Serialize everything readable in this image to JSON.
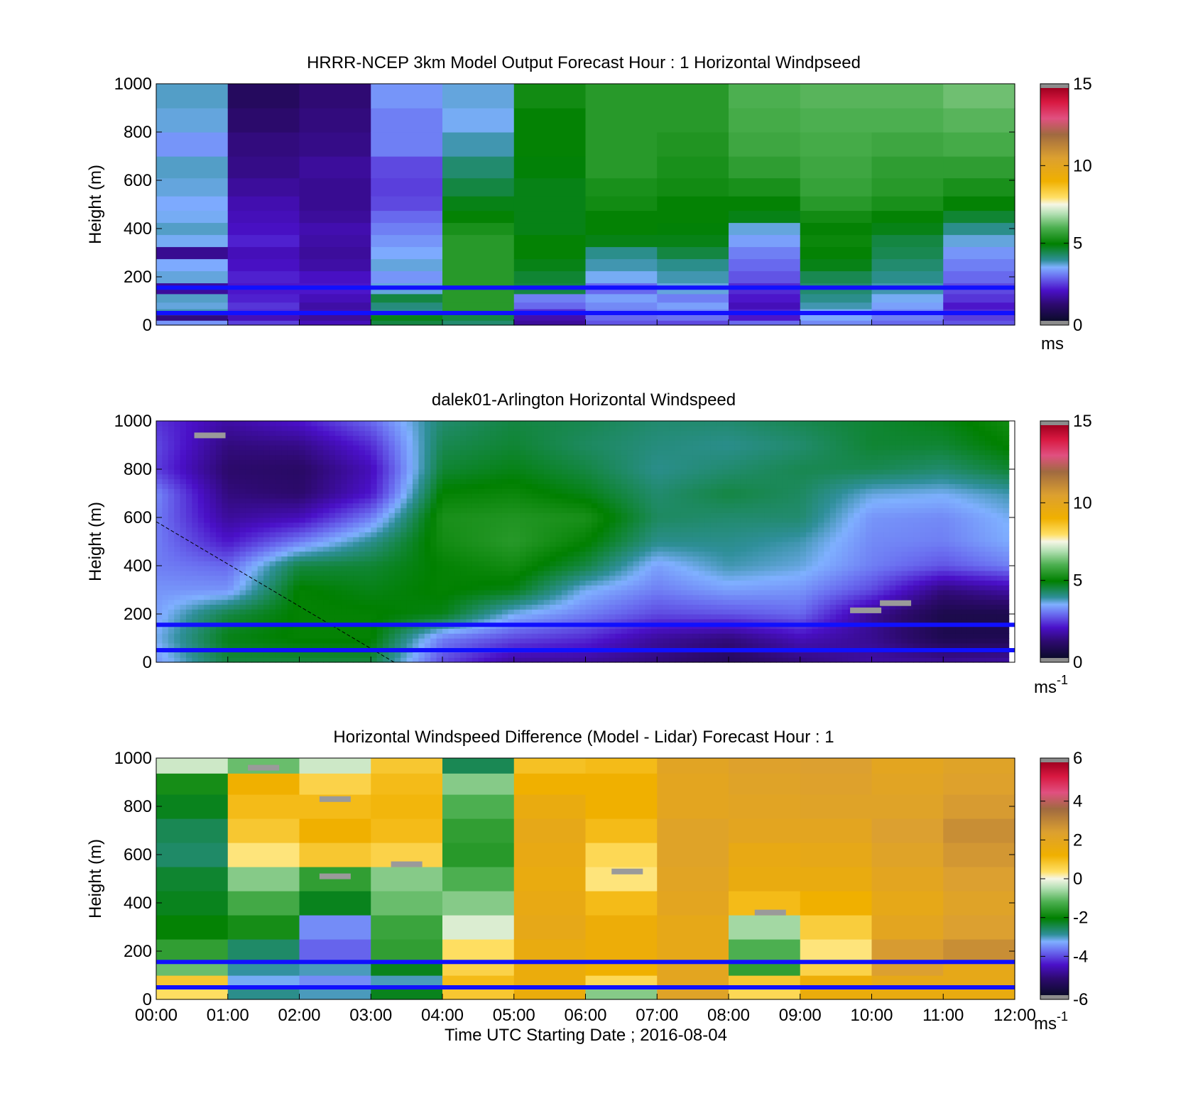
{
  "figure": {
    "xlabel": "Time UTC  Starting Date ; 2016-08-04",
    "x_ticks": [
      "00:00",
      "01:00",
      "02:00",
      "03:00",
      "04:00",
      "05:00",
      "06:00",
      "07:00",
      "08:00",
      "09:00",
      "10:00",
      "11:00",
      "12:00"
    ]
  },
  "chart_data": [
    {
      "type": "heatmap",
      "title": "HRRR-NCEP 3km Model Output   Forecast Hour : 1 Horizontal Windpseed",
      "ylabel": "Height (m)",
      "xlim": [
        "00:00",
        "12:00"
      ],
      "ylim": [
        0,
        1000
      ],
      "y_ticks": [
        "0",
        "200",
        "400",
        "600",
        "800",
        "1000"
      ],
      "colorbar": {
        "min": 0,
        "max": 15,
        "ticks": [
          "0",
          "5",
          "10",
          "15"
        ],
        "unit": "ms",
        "unit_sup": ""
      },
      "reference_lines_m": [
        50,
        155
      ],
      "x_centers": [
        "00:30",
        "01:30",
        "02:30",
        "03:30",
        "04:30",
        "05:30",
        "06:30",
        "07:30",
        "08:30",
        "09:30",
        "10:30",
        "11:30"
      ],
      "heights_m": [
        10,
        30,
        55,
        80,
        110,
        150,
        200,
        250,
        300,
        350,
        400,
        450,
        500,
        570,
        650,
        750,
        850,
        950
      ],
      "values": [
        [
          3.2,
          1.2,
          3.8,
          3.6,
          3.7,
          1.5,
          3.6,
          3.4,
          1.4,
          3.5,
          3.7,
          3.5,
          3.4,
          3.6,
          3.7,
          3.2,
          3.6,
          3.7
        ],
        [
          2.4,
          1.8,
          2.2,
          2.3,
          2.1,
          2.0,
          2.1,
          1.9,
          1.8,
          2.1,
          1.9,
          1.8,
          1.7,
          1.5,
          1.3,
          1.2,
          1.0,
          0.8
        ],
        [
          1.8,
          1.5,
          1.7,
          1.6,
          1.8,
          2.0,
          1.9,
          1.6,
          1.5,
          1.6,
          1.7,
          1.5,
          1.4,
          1.4,
          1.5,
          1.3,
          1.2,
          1.1
        ],
        [
          4.5,
          4.8,
          4.0,
          4.1,
          4.5,
          3.6,
          3.2,
          3.6,
          3.4,
          3.2,
          3.0,
          2.8,
          2.5,
          2.4,
          2.5,
          3.0,
          3.0,
          3.2
        ],
        [
          4.2,
          4.5,
          5.5,
          5.5,
          5.5,
          5.5,
          5.5,
          5.5,
          5.5,
          5.5,
          5.3,
          5.0,
          4.8,
          4.5,
          4.2,
          3.8,
          3.5,
          3.6
        ],
        [
          1.5,
          1.7,
          2.2,
          2.8,
          3.0,
          4.5,
          4.6,
          4.8,
          5.0,
          5.0,
          4.8,
          4.8,
          4.8,
          4.8,
          4.9,
          5.0,
          5.0,
          5.2
        ],
        [
          2.6,
          2.8,
          3.0,
          3.1,
          3.3,
          2.8,
          3.5,
          3.8,
          4.0,
          4.8,
          5.0,
          5.0,
          5.2,
          5.3,
          5.5,
          5.5,
          5.5,
          5.5
        ],
        [
          2.5,
          2.9,
          3.1,
          3.3,
          3.0,
          3.6,
          3.8,
          4.0,
          4.5,
          4.8,
          4.9,
          5.0,
          5.0,
          5.2,
          5.3,
          5.4,
          5.5,
          5.5
        ],
        [
          2.8,
          2.0,
          2.1,
          1.8,
          2.0,
          2.2,
          2.6,
          2.8,
          3.0,
          3.3,
          3.6,
          4.8,
          5.0,
          5.3,
          5.6,
          5.8,
          5.9,
          6.0
        ],
        [
          3.1,
          3.4,
          3.5,
          3.8,
          4.0,
          4.2,
          4.4,
          4.8,
          5.0,
          5.1,
          5.0,
          5.2,
          5.5,
          5.7,
          5.8,
          5.9,
          6.0,
          6.1
        ],
        [
          2.8,
          3.0,
          3.1,
          3.3,
          3.5,
          3.8,
          4.0,
          4.2,
          4.4,
          4.5,
          4.8,
          5.0,
          5.3,
          5.5,
          5.6,
          5.8,
          6.0,
          6.1
        ],
        [
          2.6,
          2.4,
          2.2,
          2.0,
          2.3,
          2.5,
          2.8,
          3.0,
          3.2,
          3.6,
          4.0,
          4.6,
          5.0,
          5.3,
          5.6,
          5.9,
          6.1,
          6.3
        ]
      ]
    },
    {
      "type": "heatmap",
      "title": "dalek01-Arlington  Horizontal Windspeed",
      "ylabel": "Height (m)",
      "xlim": [
        "00:00",
        "12:00"
      ],
      "ylim": [
        0,
        1000
      ],
      "y_ticks": [
        "0",
        "200",
        "400",
        "600",
        "800",
        "1000"
      ],
      "colorbar": {
        "min": 0,
        "max": 15,
        "ticks": [
          "0",
          "5",
          "10",
          "15"
        ],
        "unit": "ms",
        "unit_sup": "-1"
      },
      "reference_lines_m": [
        50,
        155
      ],
      "anchor_times": [
        "00:00",
        "01:00",
        "02:00",
        "03:00",
        "04:00",
        "05:00",
        "06:00",
        "07:00",
        "08:00",
        "09:00",
        "10:00",
        "11:00",
        "11:55"
      ],
      "anchor_heights_m": [
        0,
        100,
        200,
        300,
        400,
        500,
        600,
        700,
        800,
        900,
        1000
      ],
      "anchor_values": [
        [
          3.2,
          3.5,
          3.3,
          3.2,
          3.0,
          3.0,
          3.0,
          3.1,
          2.4,
          2.5,
          2.3
        ],
        [
          4.5,
          4.8,
          4.5,
          3.2,
          2.8,
          2.0,
          1.5,
          1.2,
          1.0,
          1.2,
          1.6
        ],
        [
          4.5,
          5.0,
          5.0,
          5.0,
          4.5,
          3.0,
          1.8,
          1.0,
          0.9,
          1.3,
          2.0
        ],
        [
          4.5,
          5.0,
          5.0,
          4.8,
          4.6,
          4.0,
          3.0,
          2.0,
          1.8,
          2.2,
          2.8
        ],
        [
          2.5,
          3.0,
          4.8,
          5.0,
          5.0,
          5.2,
          5.3,
          5.0,
          4.6,
          4.4,
          4.2
        ],
        [
          1.5,
          2.5,
          3.5,
          4.8,
          5.2,
          5.5,
          5.4,
          5.1,
          4.8,
          4.6,
          4.5
        ],
        [
          1.5,
          2.2,
          3.0,
          3.5,
          4.5,
          5.0,
          5.3,
          4.8,
          4.5,
          4.3,
          4.4
        ],
        [
          1.2,
          1.5,
          2.5,
          3.0,
          3.3,
          4.0,
          4.3,
          4.2,
          4.0,
          4.1,
          4.2
        ],
        [
          0.8,
          1.2,
          2.6,
          3.3,
          3.8,
          4.0,
          4.2,
          4.5,
          4.2,
          4.0,
          4.2
        ],
        [
          1.2,
          1.8,
          2.8,
          3.2,
          3.6,
          3.8,
          4.2,
          4.3,
          4.4,
          4.2,
          4.4
        ],
        [
          1.6,
          1.4,
          1.4,
          2.5,
          3.0,
          3.1,
          3.2,
          3.6,
          4.4,
          4.6,
          4.6
        ],
        [
          1.5,
          0.6,
          0.5,
          1.2,
          2.6,
          3.0,
          3.1,
          3.5,
          4.2,
          4.6,
          4.8
        ],
        [
          1.6,
          0.6,
          0.5,
          1.6,
          3.0,
          3.4,
          3.5,
          3.8,
          4.6,
          5.0,
          5.2
        ]
      ],
      "missing_value_patches": [
        {
          "time": "00:45",
          "height_m": 940
        },
        {
          "time": "09:55",
          "height_m": 215
        },
        {
          "time": "10:20",
          "height_m": 245
        }
      ]
    },
    {
      "type": "heatmap",
      "title": "Horizontal Windspeed Difference (Model - Lidar) Forecast Hour : 1",
      "ylabel": "Height (m)",
      "xlim": [
        "00:00",
        "12:00"
      ],
      "ylim": [
        0,
        1000
      ],
      "y_ticks": [
        "0",
        "200",
        "400",
        "600",
        "800",
        "1000"
      ],
      "colorbar": {
        "min": -6,
        "max": 6,
        "ticks": [
          "-6",
          "-4",
          "-2",
          "0",
          "2",
          "4",
          "6"
        ],
        "unit": "ms",
        "unit_sup": "-1"
      },
      "reference_lines_m": [
        50,
        155
      ],
      "x_centers": [
        "00:30",
        "01:30",
        "02:30",
        "03:30",
        "04:30",
        "05:30",
        "06:30",
        "07:30",
        "08:30",
        "09:30",
        "10:30",
        "11:30"
      ],
      "heights_m": [
        25,
        75,
        125,
        200,
        300,
        400,
        500,
        600,
        700,
        800,
        900,
        975
      ],
      "values": [
        [
          0.4,
          0.8,
          -1.0,
          -1.5,
          -2.0,
          -2.2,
          -2.3,
          -2.6,
          -2.5,
          -2.2,
          -1.8,
          -0.3
        ],
        [
          -2.8,
          -3.2,
          -2.9,
          -2.6,
          -1.8,
          -1.3,
          -0.8,
          0.3,
          0.8,
          1.0,
          1.2,
          -1.0
        ],
        [
          -3.0,
          -3.5,
          -3.0,
          -3.8,
          -3.5,
          -2.2,
          -1.5,
          0.8,
          1.2,
          1.0,
          0.6,
          -0.3
        ],
        [
          -2.2,
          -3.0,
          -2.2,
          -1.5,
          -1.4,
          -1.0,
          -0.8,
          0.6,
          1.0,
          1.1,
          1.0,
          0.8
        ],
        [
          0.8,
          1.0,
          0.6,
          0.4,
          -0.2,
          -0.8,
          -1.2,
          -1.6,
          -1.5,
          -1.2,
          -0.8,
          -2.5
        ],
        [
          1.5,
          1.5,
          1.5,
          1.6,
          1.8,
          1.7,
          1.6,
          1.7,
          1.8,
          1.6,
          1.2,
          0.9
        ],
        [
          -0.8,
          0.5,
          1.2,
          1.4,
          1.4,
          1.0,
          0.3,
          0.5,
          1.0,
          1.2,
          1.2,
          1.0
        ],
        [
          2.2,
          2.0,
          2.0,
          1.8,
          1.8,
          2.0,
          2.1,
          2.2,
          2.2,
          2.0,
          2.0,
          2.1
        ],
        [
          0.5,
          0.8,
          -1.5,
          -1.2,
          -0.6,
          1.0,
          1.6,
          1.7,
          2.0,
          2.1,
          2.2,
          2.3
        ],
        [
          1.5,
          1.4,
          0.6,
          0.3,
          0.7,
          1.2,
          1.6,
          1.8,
          2.0,
          2.2,
          2.3,
          2.4
        ],
        [
          1.6,
          1.8,
          2.4,
          2.5,
          2.0,
          1.8,
          2.0,
          2.2,
          2.4,
          2.2,
          2.1,
          2.0
        ],
        [
          1.6,
          1.8,
          1.8,
          2.8,
          2.4,
          2.2,
          2.4,
          2.6,
          2.8,
          2.5,
          2.3,
          2.2
        ]
      ],
      "missing_value_patches": [
        {
          "time": "06:35",
          "height_m": 530
        },
        {
          "time": "08:35",
          "height_m": 360
        },
        {
          "time": "02:30",
          "height_m": 830
        },
        {
          "time": "02:30",
          "height_m": 510
        },
        {
          "time": "03:30",
          "height_m": 560
        },
        {
          "time": "01:30",
          "height_m": 960
        }
      ]
    }
  ]
}
